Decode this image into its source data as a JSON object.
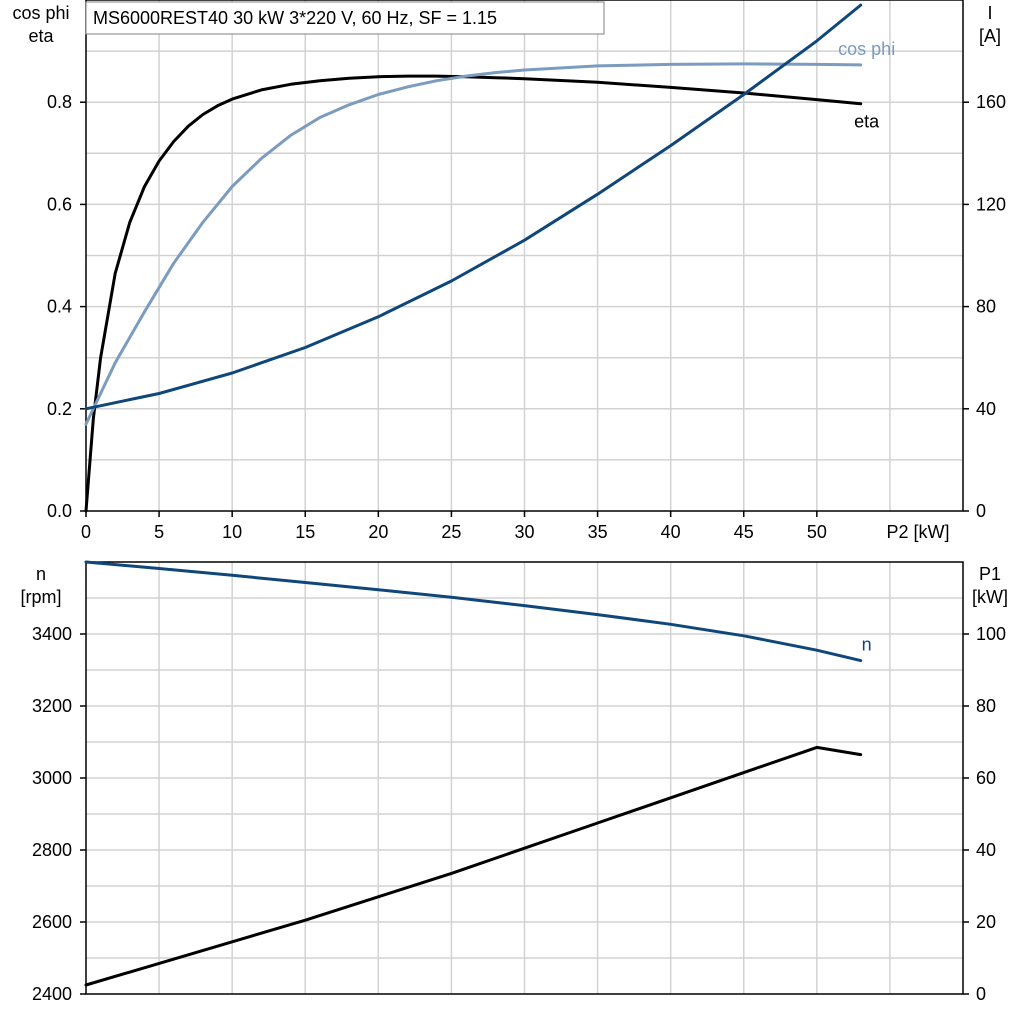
{
  "title": "MS6000REST40   30 kW   3*220 V, 60 Hz, SF = 1.15",
  "colors": {
    "eta": "#000000",
    "cos_phi": "#7b9cbf",
    "I": "#0f477a",
    "n": "#0f477a",
    "P1": "#000000"
  },
  "chart_data": [
    {
      "type": "line",
      "xlabel": "P2 [kW]",
      "ylabel_left": [
        "cos phi",
        "eta"
      ],
      "ylabel_right": [
        "I",
        "[A]"
      ],
      "xlim": [
        0,
        60
      ],
      "ylim_left": [
        0,
        1.0
      ],
      "ylim_right": [
        0,
        200
      ],
      "xticks": [
        "0",
        "5",
        "10",
        "15",
        "20",
        "25",
        "30",
        "35",
        "40",
        "45",
        "50"
      ],
      "xtick_values": [
        0,
        5,
        10,
        15,
        20,
        25,
        30,
        35,
        40,
        45,
        50
      ],
      "yticks_left": [
        "0.0",
        "0.2",
        "0.4",
        "0.6",
        "0.8"
      ],
      "ytick_left_values": [
        0,
        0.2,
        0.4,
        0.6,
        0.8
      ],
      "yticks_right": [
        "0",
        "40",
        "80",
        "120",
        "160"
      ],
      "ytick_right_values": [
        0,
        40,
        80,
        120,
        160
      ],
      "grid": true,
      "series": [
        {
          "name": "eta",
          "axis": "left",
          "label_pos": "below",
          "x": [
            0,
            0.5,
            1,
            2,
            3,
            4,
            5,
            6,
            7,
            8,
            9,
            10,
            12,
            14,
            16,
            18,
            20,
            22,
            24,
            26,
            28,
            30,
            35,
            40,
            45,
            50,
            53
          ],
          "y": [
            0,
            0.18,
            0.3,
            0.465,
            0.565,
            0.635,
            0.685,
            0.723,
            0.753,
            0.776,
            0.793,
            0.806,
            0.824,
            0.835,
            0.842,
            0.847,
            0.85,
            0.851,
            0.851,
            0.85,
            0.848,
            0.846,
            0.839,
            0.829,
            0.818,
            0.805,
            0.797
          ]
        },
        {
          "name": "cos phi",
          "axis": "left",
          "label_pos": "above",
          "x": [
            0,
            2,
            4,
            6,
            8,
            10,
            12,
            14,
            16,
            18,
            20,
            22,
            24,
            26,
            28,
            30,
            35,
            40,
            45,
            50,
            53
          ],
          "y": [
            0.17,
            0.29,
            0.39,
            0.485,
            0.565,
            0.635,
            0.69,
            0.735,
            0.77,
            0.795,
            0.815,
            0.83,
            0.842,
            0.851,
            0.858,
            0.863,
            0.871,
            0.874,
            0.875,
            0.874,
            0.873
          ]
        },
        {
          "name": "I",
          "axis": "right",
          "label_pos": "above",
          "x": [
            0,
            5,
            10,
            15,
            20,
            25,
            30,
            35,
            40,
            45,
            50,
            53
          ],
          "y": [
            40,
            46,
            54,
            64,
            76,
            90,
            106,
            124,
            143,
            163,
            184,
            198
          ]
        }
      ]
    },
    {
      "type": "line",
      "xlabel": "",
      "ylabel_left": [
        "n",
        "[rpm]"
      ],
      "ylabel_right": [
        "P1",
        "[kW]"
      ],
      "xlim": [
        0,
        60
      ],
      "ylim_left": [
        2400,
        3600
      ],
      "ylim_right": [
        0,
        120
      ],
      "yticks_left": [
        "2400",
        "2600",
        "2800",
        "3000",
        "3200",
        "3400"
      ],
      "ytick_left_values": [
        2400,
        2600,
        2800,
        3000,
        3200,
        3400
      ],
      "yticks_right": [
        "0",
        "20",
        "40",
        "60",
        "80",
        "100"
      ],
      "ytick_right_values": [
        0,
        20,
        40,
        60,
        80,
        100
      ],
      "grid": true,
      "series": [
        {
          "name": "n",
          "axis": "left",
          "label_pos": "above",
          "x": [
            0,
            5,
            10,
            15,
            20,
            25,
            30,
            35,
            40,
            45,
            50,
            53
          ],
          "y": [
            3600,
            3582,
            3563,
            3543,
            3523,
            3502,
            3479,
            3454,
            3427,
            3395,
            3355,
            3326
          ]
        },
        {
          "name": "",
          "axis": "right",
          "x": [
            0,
            5,
            10,
            15,
            20,
            25,
            30,
            35,
            40,
            45,
            50,
            53
          ],
          "y": [
            2.5,
            8.5,
            14.5,
            20.5,
            27,
            33.5,
            40.5,
            47.5,
            54.5,
            61.5,
            68.5,
            66.5
          ]
        }
      ]
    }
  ]
}
